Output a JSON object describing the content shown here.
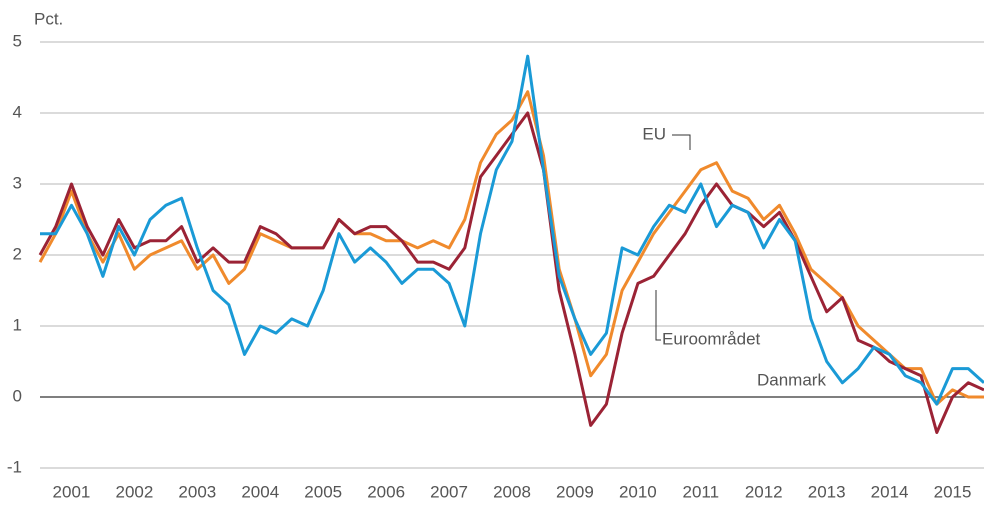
{
  "chart_data": {
    "type": "line",
    "y_label": "Pct.",
    "xlim": [
      2001,
      2016
    ],
    "xticks": [
      {
        "value": 2001.5,
        "label": "2001"
      },
      {
        "value": 2002.5,
        "label": "2002"
      },
      {
        "value": 2003.5,
        "label": "2003"
      },
      {
        "value": 2004.5,
        "label": "2004"
      },
      {
        "value": 2005.5,
        "label": "2005"
      },
      {
        "value": 2006.5,
        "label": "2006"
      },
      {
        "value": 2007.5,
        "label": "2007"
      },
      {
        "value": 2008.5,
        "label": "2008"
      },
      {
        "value": 2009.5,
        "label": "2009"
      },
      {
        "value": 2010.5,
        "label": "2010"
      },
      {
        "value": 2011.5,
        "label": "2011"
      },
      {
        "value": 2012.5,
        "label": "2012"
      },
      {
        "value": 2013.5,
        "label": "2013"
      },
      {
        "value": 2014.5,
        "label": "2014"
      },
      {
        "value": 2015.5,
        "label": "2015"
      }
    ],
    "ylim": [
      -1,
      5
    ],
    "yticks": [
      -1,
      0,
      1,
      2,
      3,
      4,
      5
    ],
    "grid": true,
    "x": [
      2001,
      2001.25,
      2001.5,
      2001.75,
      2002,
      2002.25,
      2002.5,
      2002.75,
      2003,
      2003.25,
      2003.5,
      2003.75,
      2004,
      2004.25,
      2004.5,
      2004.75,
      2005,
      2005.25,
      2005.5,
      2005.75,
      2006,
      2006.25,
      2006.5,
      2006.75,
      2007,
      2007.25,
      2007.5,
      2007.75,
      2008,
      2008.25,
      2008.5,
      2008.75,
      2009,
      2009.25,
      2009.5,
      2009.75,
      2010,
      2010.25,
      2010.5,
      2010.75,
      2011,
      2011.25,
      2011.5,
      2011.75,
      2012,
      2012.25,
      2012.5,
      2012.75,
      2013,
      2013.25,
      2013.5,
      2013.75,
      2014,
      2014.25,
      2014.5,
      2014.75,
      2015,
      2015.25,
      2015.5,
      2015.75,
      2016
    ],
    "series": [
      {
        "name": "EU",
        "color": "#f08a2c",
        "values": [
          1.9,
          2.3,
          2.9,
          2.3,
          1.9,
          2.3,
          1.8,
          2.0,
          2.1,
          2.2,
          1.8,
          2.0,
          1.6,
          1.8,
          2.3,
          2.2,
          2.1,
          2.1,
          2.1,
          2.5,
          2.3,
          2.3,
          2.2,
          2.2,
          2.1,
          2.2,
          2.1,
          2.5,
          3.3,
          3.7,
          3.9,
          4.3,
          3.4,
          1.8,
          1.1,
          0.3,
          0.6,
          1.5,
          1.9,
          2.3,
          2.6,
          2.9,
          3.2,
          3.3,
          2.9,
          2.8,
          2.5,
          2.7,
          2.3,
          1.8,
          1.6,
          1.4,
          1.0,
          0.8,
          0.6,
          0.4,
          0.4,
          -0.1,
          0.1,
          0.0,
          0.0
        ]
      },
      {
        "name": "Euroområdet",
        "color": "#9b2335",
        "values": [
          2.0,
          2.4,
          3.0,
          2.4,
          2.0,
          2.5,
          2.1,
          2.2,
          2.2,
          2.4,
          1.9,
          2.1,
          1.9,
          1.9,
          2.4,
          2.3,
          2.1,
          2.1,
          2.1,
          2.5,
          2.3,
          2.4,
          2.4,
          2.2,
          1.9,
          1.9,
          1.8,
          2.1,
          3.1,
          3.4,
          3.7,
          4.0,
          3.2,
          1.5,
          0.6,
          -0.4,
          -0.1,
          0.9,
          1.6,
          1.7,
          2.0,
          2.3,
          2.7,
          3.0,
          2.7,
          2.6,
          2.4,
          2.6,
          2.2,
          1.7,
          1.2,
          1.4,
          0.8,
          0.7,
          0.5,
          0.4,
          0.3,
          -0.5,
          0.0,
          0.2,
          0.1
        ]
      },
      {
        "name": "Danmark",
        "color": "#1a9ad6",
        "values": [
          2.3,
          2.3,
          2.7,
          2.3,
          1.7,
          2.4,
          2.0,
          2.5,
          2.7,
          2.8,
          2.1,
          1.5,
          1.3,
          0.6,
          1.0,
          0.9,
          1.1,
          1.0,
          1.5,
          2.3,
          1.9,
          2.1,
          1.9,
          1.6,
          1.8,
          1.8,
          1.6,
          1.0,
          2.3,
          3.2,
          3.6,
          4.8,
          3.2,
          1.7,
          1.1,
          0.6,
          0.9,
          2.1,
          2.0,
          2.4,
          2.7,
          2.6,
          3.0,
          2.4,
          2.7,
          2.6,
          2.1,
          2.5,
          2.2,
          1.1,
          0.5,
          0.2,
          0.4,
          0.7,
          0.6,
          0.3,
          0.2,
          -0.1,
          0.4,
          0.4,
          0.2
        ]
      }
    ]
  }
}
